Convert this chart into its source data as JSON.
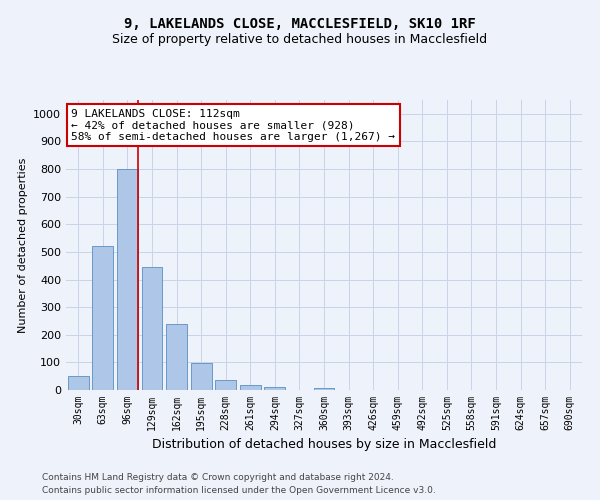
{
  "title_line1": "9, LAKELANDS CLOSE, MACCLESFIELD, SK10 1RF",
  "title_line2": "Size of property relative to detached houses in Macclesfield",
  "xlabel": "Distribution of detached houses by size in Macclesfield",
  "ylabel": "Number of detached properties",
  "bin_labels": [
    "30sqm",
    "63sqm",
    "96sqm",
    "129sqm",
    "162sqm",
    "195sqm",
    "228sqm",
    "261sqm",
    "294sqm",
    "327sqm",
    "360sqm",
    "393sqm",
    "426sqm",
    "459sqm",
    "492sqm",
    "525sqm",
    "558sqm",
    "591sqm",
    "624sqm",
    "657sqm",
    "690sqm"
  ],
  "bar_values": [
    50,
    520,
    800,
    445,
    238,
    98,
    35,
    18,
    10,
    0,
    8,
    0,
    0,
    0,
    0,
    0,
    0,
    0,
    0,
    0,
    0
  ],
  "bar_color": "#aec6e8",
  "bar_edge_color": "#5a8fc0",
  "vline_x_index": 2,
  "vline_color": "#cc0000",
  "annotation_text": "9 LAKELANDS CLOSE: 112sqm\n← 42% of detached houses are smaller (928)\n58% of semi-detached houses are larger (1,267) →",
  "annotation_box_facecolor": "#ffffff",
  "annotation_box_edgecolor": "#cc0000",
  "ylim": [
    0,
    1050
  ],
  "yticks": [
    0,
    100,
    200,
    300,
    400,
    500,
    600,
    700,
    800,
    900,
    1000
  ],
  "grid_color": "#c8d4e8",
  "background_color": "#eef2fa",
  "footer_line1": "Contains HM Land Registry data © Crown copyright and database right 2024.",
  "footer_line2": "Contains public sector information licensed under the Open Government Licence v3.0."
}
